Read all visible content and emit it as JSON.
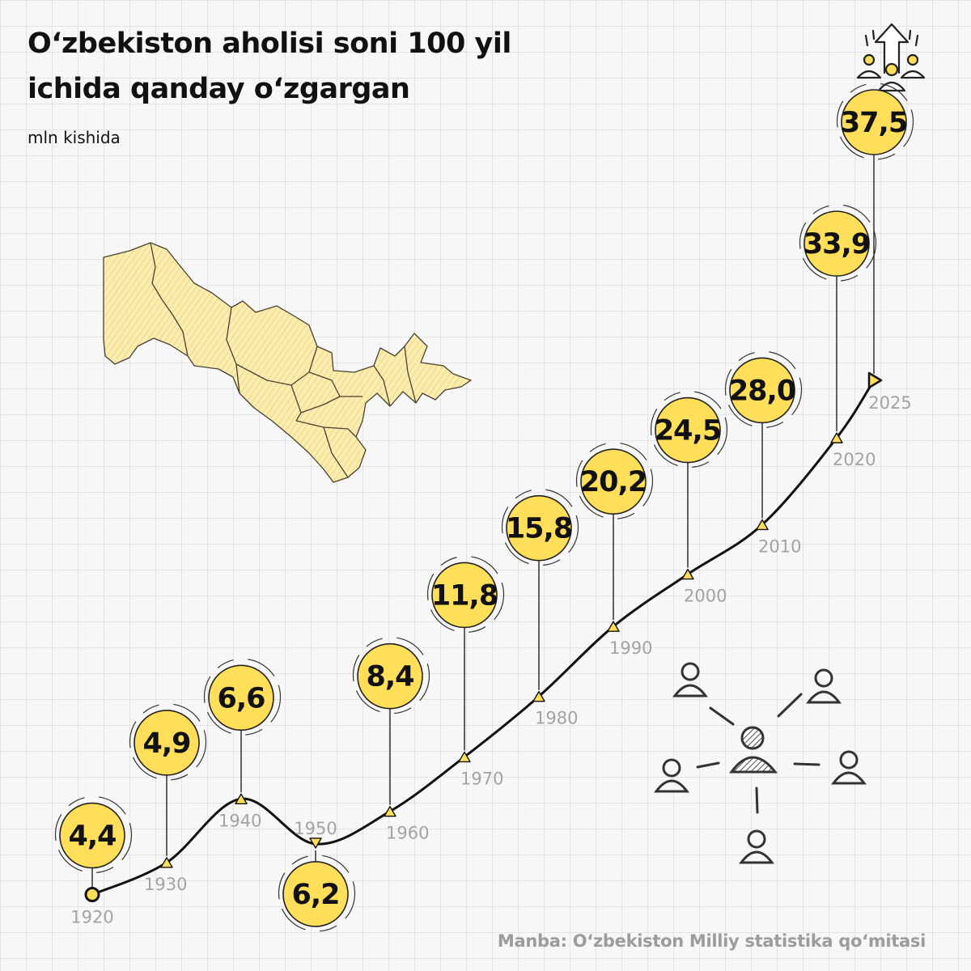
{
  "title": {
    "line1": "O‘zbekiston aholisi soni 100 yil",
    "line2": "ichida qanday o‘zgargan"
  },
  "unit_label": "mln kishida",
  "source": "Manba: O‘zbekiston Milliy statistika qo‘mitasi",
  "colors": {
    "bubble_fill": "#FFDE59",
    "line": "#111111",
    "year_text": "#A3A3A3",
    "map_fill": "#FBEDB0",
    "grid": "#E4E4E4",
    "background": "#F7F7F7"
  },
  "icons": [
    "population-growth-icon",
    "uzbekistan-map",
    "people-network-icon"
  ],
  "chart_data": {
    "type": "line",
    "title": "O‘zbekiston aholisi soni 100 yil ichida qanday o‘zgargan",
    "ylabel": "mln kishida",
    "xlabel": "",
    "x": [
      1920,
      1930,
      1940,
      1950,
      1960,
      1970,
      1980,
      1990,
      2000,
      2010,
      2020,
      2025
    ],
    "values": [
      4.4,
      4.9,
      6.6,
      6.2,
      8.4,
      11.8,
      15.8,
      20.2,
      24.5,
      28.0,
      33.9,
      37.5
    ],
    "data_labels": [
      "4,4",
      "4,9",
      "6,6",
      "6,2",
      "8,4",
      "11,8",
      "15,8",
      "20,2",
      "24,5",
      "28,0",
      "33,9",
      "37,5"
    ],
    "ylim": [
      0,
      40
    ],
    "grid": false,
    "legend": "none"
  }
}
